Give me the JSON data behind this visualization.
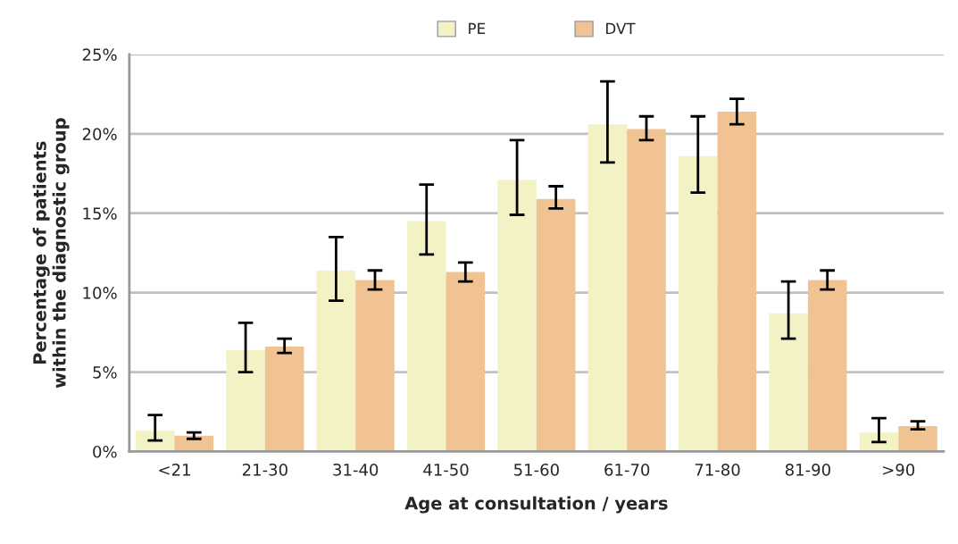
{
  "chart_data": {
    "type": "bar",
    "xlabel": "Age at consultation / years",
    "ylabel": "Percentage of patients\nwithin the diagnostic group",
    "categories": [
      "<21",
      "21-30",
      "31-40",
      "41-50",
      "51-60",
      "61-70",
      "71-80",
      "81-90",
      ">90"
    ],
    "series": [
      {
        "name": "PE",
        "color": "#f3f2c4",
        "values": [
          1.3,
          6.4,
          11.4,
          14.5,
          17.1,
          20.6,
          18.6,
          8.7,
          1.2
        ],
        "errors": [
          [
            0.7,
            2.3
          ],
          [
            5.0,
            8.1
          ],
          [
            9.5,
            13.5
          ],
          [
            12.4,
            16.8
          ],
          [
            14.9,
            19.6
          ],
          [
            18.2,
            23.3
          ],
          [
            16.3,
            21.1
          ],
          [
            7.1,
            10.7
          ],
          [
            0.6,
            2.1
          ]
        ]
      },
      {
        "name": "DVT",
        "color": "#f2c392",
        "values": [
          1.0,
          6.6,
          10.8,
          11.3,
          15.9,
          20.3,
          21.4,
          10.8,
          1.6
        ],
        "errors": [
          [
            0.8,
            1.2
          ],
          [
            6.2,
            7.1
          ],
          [
            10.2,
            11.4
          ],
          [
            10.7,
            11.9
          ],
          [
            15.3,
            16.7
          ],
          [
            19.6,
            21.1
          ],
          [
            20.6,
            22.2
          ],
          [
            10.2,
            11.4
          ],
          [
            1.4,
            1.9
          ]
        ]
      }
    ],
    "ylim": [
      0,
      25
    ],
    "yticks": [
      {
        "value": 0,
        "label": "0%"
      },
      {
        "value": 5,
        "label": "5%"
      },
      {
        "value": 10,
        "label": "10%"
      },
      {
        "value": 15,
        "label": "15%"
      },
      {
        "value": 20,
        "label": "20%"
      },
      {
        "value": 25,
        "label": "25%"
      }
    ],
    "grid": "y",
    "legend": "top"
  }
}
